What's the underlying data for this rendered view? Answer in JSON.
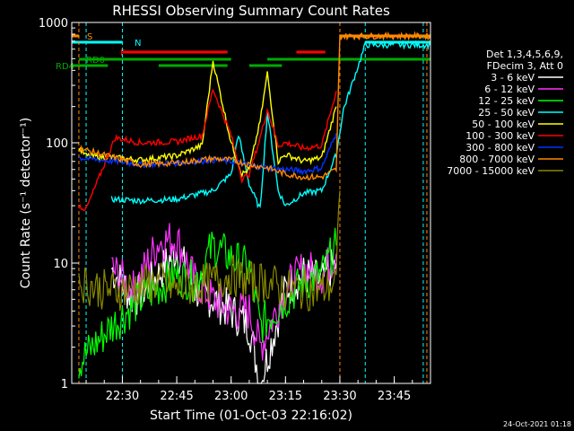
{
  "chart_data": {
    "type": "line",
    "title": "RHESSI Observing Summary Count Rates",
    "xlabel": "Start Time (01-Oct-03 22:16:02)",
    "ylabel": "Count Rate (s⁻¹ detector⁻¹)",
    "ylog": true,
    "ylim": [
      1,
      1000
    ],
    "xlim": [
      "22:16:02",
      "23:55:00"
    ],
    "x_ticks": [
      "22:30",
      "22:45",
      "23:00",
      "23:15",
      "23:30",
      "23:45"
    ],
    "y_ticks": [
      "1",
      "10",
      "100",
      "1000"
    ],
    "grid": false,
    "legend_header": [
      "Det 1,3,4,5,6,9,",
      "FDecim 3, Att 0"
    ],
    "legend_position": "right",
    "series": [
      {
        "name": "3 - 6 keV",
        "color": "#ffffff",
        "x": [
          "22:27",
          "22:33",
          "22:40",
          "22:45",
          "22:50",
          "22:55",
          "23:00",
          "23:05",
          "23:08",
          "23:15",
          "23:20",
          "23:25",
          "23:29"
        ],
        "y": [
          9,
          5,
          8,
          13,
          6,
          5,
          4,
          3,
          1,
          6,
          8,
          7,
          10
        ]
      },
      {
        "name": "6 - 12 keV",
        "color": "#ff33ff",
        "x": [
          "22:27",
          "22:33",
          "22:40",
          "22:45",
          "22:50",
          "22:55",
          "23:00",
          "23:05",
          "23:08",
          "23:15",
          "23:20",
          "23:25",
          "23:29"
        ],
        "y": [
          9,
          6,
          15,
          16,
          7,
          5,
          4,
          4,
          2,
          6,
          9,
          8,
          12
        ]
      },
      {
        "name": "12 - 25 keV",
        "color": "#00ff00",
        "x": [
          "22:18",
          "22:27",
          "22:35",
          "22:45",
          "22:50",
          "22:55",
          "23:00",
          "23:05",
          "23:08",
          "23:15",
          "23:20",
          "23:25",
          "23:29"
        ],
        "y": [
          1.5,
          3,
          5,
          8,
          7,
          14,
          11,
          9,
          3,
          5,
          7,
          8,
          14
        ]
      },
      {
        "name": "25 - 50 keV",
        "color": "#00ffff",
        "x": [
          "22:27",
          "22:35",
          "22:45",
          "22:55",
          "23:00",
          "23:02",
          "23:05",
          "23:08",
          "23:10",
          "23:13",
          "23:15",
          "23:20",
          "23:25",
          "23:29",
          "23:31",
          "23:37",
          "23:55"
        ],
        "y": [
          34,
          33,
          34,
          40,
          55,
          118,
          45,
          28,
          180,
          40,
          30,
          38,
          40,
          80,
          190,
          650,
          650
        ]
      },
      {
        "name": "50 - 100 keV",
        "color": "#ffff00",
        "x": [
          "22:18",
          "22:20",
          "22:28",
          "22:35",
          "22:45",
          "22:52",
          "22:55",
          "23:00",
          "23:03",
          "23:05",
          "23:08",
          "23:10",
          "23:13",
          "23:15",
          "23:20",
          "23:25",
          "23:29"
        ],
        "y": [
          90,
          78,
          75,
          72,
          78,
          95,
          480,
          100,
          55,
          60,
          150,
          380,
          70,
          80,
          70,
          75,
          200
        ]
      },
      {
        "name": "100 - 300 keV",
        "color": "#ff0000",
        "x": [
          "22:18",
          "22:20",
          "22:28",
          "22:35",
          "22:45",
          "22:52",
          "22:55",
          "23:00",
          "23:03",
          "23:05",
          "23:08",
          "23:10",
          "23:13",
          "23:15",
          "23:20",
          "23:25",
          "23:29"
        ],
        "y": [
          30,
          28,
          110,
          100,
          102,
          115,
          280,
          115,
          50,
          55,
          110,
          190,
          95,
          100,
          90,
          95,
          270
        ]
      },
      {
        "name": "300 - 800 keV",
        "color": "#0033ff",
        "x": [
          "22:18",
          "22:28",
          "22:35",
          "22:45",
          "22:55",
          "23:00",
          "23:05",
          "23:10",
          "23:15",
          "23:20",
          "23:25",
          "23:29"
        ],
        "y": [
          75,
          70,
          66,
          68,
          72,
          70,
          65,
          62,
          60,
          58,
          62,
          120
        ]
      },
      {
        "name": "800 - 7000 keV",
        "color": "#ff8800",
        "x": [
          "22:18",
          "22:28",
          "22:35",
          "22:45",
          "22:55",
          "23:00",
          "23:05",
          "23:10",
          "23:15",
          "23:20",
          "23:25",
          "23:29",
          "23:30",
          "23:55"
        ],
        "y": [
          90,
          75,
          66,
          68,
          74,
          72,
          66,
          62,
          55,
          52,
          52,
          60,
          770,
          770
        ]
      },
      {
        "name": "7000 - 15000 keV",
        "color": "#888800",
        "x": [
          "22:18",
          "22:25",
          "22:30",
          "22:40",
          "22:45",
          "22:55",
          "23:00",
          "23:05",
          "23:10",
          "23:15",
          "23:20",
          "23:25",
          "23:29",
          "23:30"
        ],
        "y": [
          7,
          6,
          6,
          7,
          6,
          7,
          8,
          7,
          7,
          6,
          6,
          6,
          7,
          40
        ]
      }
    ],
    "flag_bars": [
      {
        "label": "S",
        "color": "#ff8800",
        "intervals": [
          [
            "22:16",
            "22:18"
          ],
          [
            "23:30",
            "23:55"
          ]
        ]
      },
      {
        "label": "N",
        "color": "#00ffff",
        "intervals": [
          [
            "22:16",
            "22:30"
          ],
          [
            "23:37",
            "23:55"
          ]
        ]
      },
      {
        "label": "F",
        "color": "#ff0000",
        "intervals": [
          [
            "22:30",
            "22:59"
          ],
          [
            "23:18",
            "23:26"
          ]
        ]
      },
      {
        "label": "RD0",
        "color": "#00aa00",
        "intervals": [
          [
            "22:18",
            "23:00"
          ],
          [
            "23:10",
            "23:55"
          ]
        ]
      },
      {
        "label": "RD4",
        "color": "#00aa00",
        "intervals": [
          [
            "22:16",
            "22:26"
          ],
          [
            "22:40",
            "22:59"
          ],
          [
            "23:05",
            "23:14"
          ]
        ]
      }
    ],
    "vertical_markers": [
      {
        "x": "22:18",
        "color": "#ff8800"
      },
      {
        "x": "22:20",
        "color": "#00ffff"
      },
      {
        "x": "22:30",
        "color": "#00ffff"
      },
      {
        "x": "23:30",
        "color": "#ff8800"
      },
      {
        "x": "23:37",
        "color": "#00ffff"
      },
      {
        "x": "23:53",
        "color": "#00ffff"
      },
      {
        "x": "23:54",
        "color": "#ff8800"
      }
    ]
  },
  "timestamp": "24-Oct-2021 01:18"
}
